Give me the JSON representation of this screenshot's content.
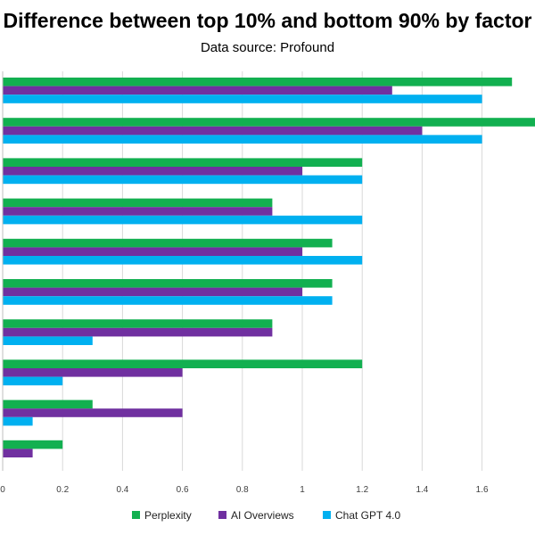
{
  "chart_data": {
    "type": "bar",
    "orientation": "horizontal",
    "title": "Difference between top 10% and bottom 90% by factor",
    "subtitle": "Data source: Profound",
    "xlim": [
      0,
      1.8
    ],
    "xticks": [
      "0",
      "0.2",
      "0.4",
      "0.6",
      "0.8",
      "1",
      "1.2",
      "1.4",
      "1.6"
    ],
    "grid": "vertical",
    "legend_position": "bottom",
    "series": [
      {
        "name": "Perplexity",
        "color": "#12b050",
        "values": [
          1.7,
          1.8,
          1.2,
          0.9,
          1.1,
          1.1,
          0.9,
          1.2,
          0.3,
          0.2
        ]
      },
      {
        "name": "AI Overviews",
        "color": "#7030a0",
        "values": [
          1.3,
          1.4,
          1.0,
          0.9,
          1.0,
          1.0,
          0.9,
          0.6,
          0.6,
          0.1
        ]
      },
      {
        "name": "Chat GPT 4.0",
        "color": "#00b0f0",
        "values": [
          1.6,
          1.6,
          1.2,
          1.2,
          1.2,
          1.1,
          0.3,
          0.2,
          0.1,
          0
        ]
      }
    ]
  }
}
